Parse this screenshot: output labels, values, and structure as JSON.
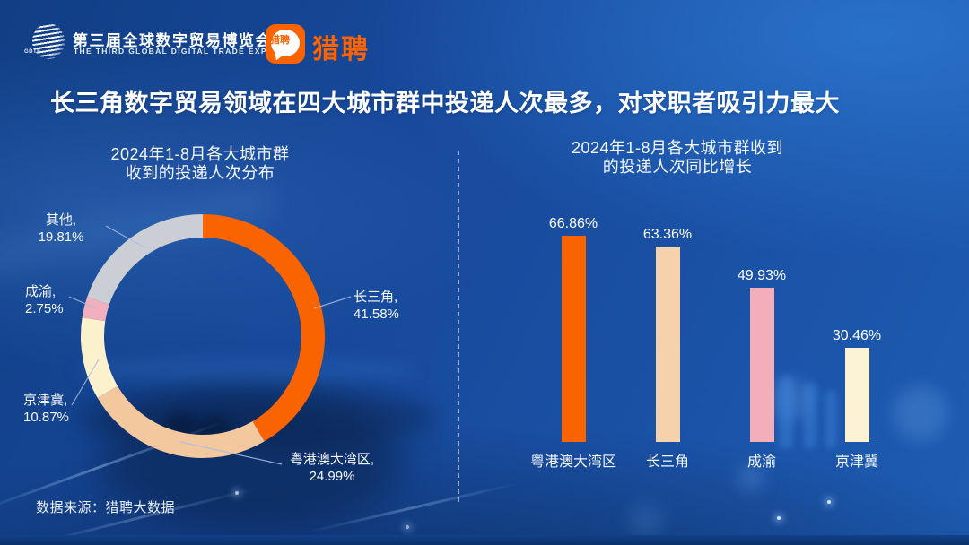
{
  "header": {
    "expo_logo_text": "GDTE",
    "expo_title_cn": "第三届全球数字贸易博览会",
    "expo_title_en": "THE THIRD GLOBAL DIGITAL TRADE EXPO",
    "liepin_logo_text": "猎聘",
    "liepin_wordmark": "猎聘"
  },
  "headline": {
    "text": "长三角数字贸易领域在四大城市群中投递人次最多，对求职者吸引力最大"
  },
  "colors": {
    "background_blue": "#1a51a5",
    "accent_orange": "#FA6400",
    "liepin_orange": "#FB6200",
    "text_white": "#ffffff"
  },
  "chart_data": [
    {
      "type": "pie",
      "donut": true,
      "title": "2024年1-8月各大城市群收到的投递人次分布",
      "title_lines": [
        "2024年1-8月各大城市群",
        "收到的投递人次分布"
      ],
      "labels": [
        "长三角",
        "粤港澳大湾区",
        "京津冀",
        "成渝",
        "其他"
      ],
      "values": [
        41.58,
        24.99,
        10.87,
        2.75,
        19.81
      ],
      "unit": "%",
      "start_angle_deg": 0,
      "direction": "clockwise",
      "colors": [
        "#FA6400",
        "#F3C89F",
        "#FBF2CD",
        "#F2B0BE",
        "#CBCED4"
      ],
      "callouts": [
        {
          "line1": "长三角,",
          "line2": "41.58%"
        },
        {
          "line1": "粤港澳大湾区,",
          "line2": "24.99%"
        },
        {
          "line1": "京津冀,",
          "line2": "10.87%"
        },
        {
          "line1": "成渝,",
          "line2": "2.75%"
        },
        {
          "line1": "其他,",
          "line2": "19.81%"
        }
      ]
    },
    {
      "type": "bar",
      "title": "2024年1-8月各大城市群收到的投递人次同比增长",
      "title_lines": [
        "2024年1-8月各大城市群收到",
        "的投递人次同比增长"
      ],
      "categories": [
        "粤港澳大湾区",
        "长三角",
        "成渝",
        "京津冀"
      ],
      "values": [
        66.86,
        63.36,
        49.93,
        30.46
      ],
      "value_labels": [
        "66.86%",
        "63.36%",
        "49.93%",
        "30.46%"
      ],
      "unit": "%",
      "ylim": [
        0,
        75
      ],
      "grid": false,
      "colors": [
        "#FA6400",
        "#F5D2AB",
        "#F3AEBC",
        "#FBF3D3"
      ]
    }
  ],
  "footer": {
    "source": "数据来源：猎聘大数据"
  }
}
